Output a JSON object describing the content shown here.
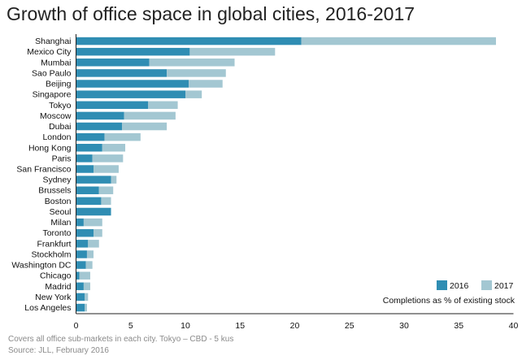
{
  "chart_data": {
    "type": "bar",
    "orientation": "horizontal",
    "stacked": true,
    "title": "Growth of office space in global cities, 2016-2017",
    "xlabel": "",
    "ylabel": "",
    "xlim": [
      0,
      40
    ],
    "xticks": [
      0,
      5,
      10,
      15,
      20,
      25,
      30,
      35,
      40
    ],
    "grid": false,
    "legend_position": "bottom-right",
    "legend_note": "Completions as % of existing stock",
    "categories": [
      "Shanghai",
      "Mexico City",
      "Mumbai",
      "Sao Paulo",
      "Beijing",
      "Singapore",
      "Tokyo",
      "Moscow",
      "Dubai",
      "London",
      "Hong Kong",
      "Paris",
      "San Francisco",
      "Sydney",
      "Brussels",
      "Boston",
      "Seoul",
      "Milan",
      "Toronto",
      "Frankfurt",
      "Stockholm",
      "Washington DC",
      "Chicago",
      "Madrid",
      "New York",
      "Los Angeles"
    ],
    "series": [
      {
        "name": "2016",
        "color": "#2f8db3",
        "values": [
          20.6,
          10.4,
          6.7,
          8.3,
          10.3,
          10.0,
          6.6,
          4.4,
          4.2,
          2.6,
          2.4,
          1.5,
          1.6,
          3.2,
          2.1,
          2.3,
          3.2,
          0.7,
          1.6,
          1.1,
          1.0,
          0.9,
          0.3,
          0.7,
          0.8,
          0.8
        ]
      },
      {
        "name": "2017",
        "color": "#a3c7d2",
        "values": [
          17.8,
          7.8,
          7.8,
          5.4,
          3.1,
          1.5,
          2.7,
          4.7,
          4.1,
          3.3,
          2.1,
          2.8,
          2.3,
          0.5,
          1.3,
          0.9,
          0.0,
          1.7,
          0.8,
          1.0,
          0.6,
          0.6,
          1.0,
          0.6,
          0.3,
          0.2
        ]
      }
    ]
  },
  "footnotes": [
    "Covers all office sub-markets in each city. Tokyo – CBD - 5 kus",
    "Source: JLL, February 2016"
  ]
}
